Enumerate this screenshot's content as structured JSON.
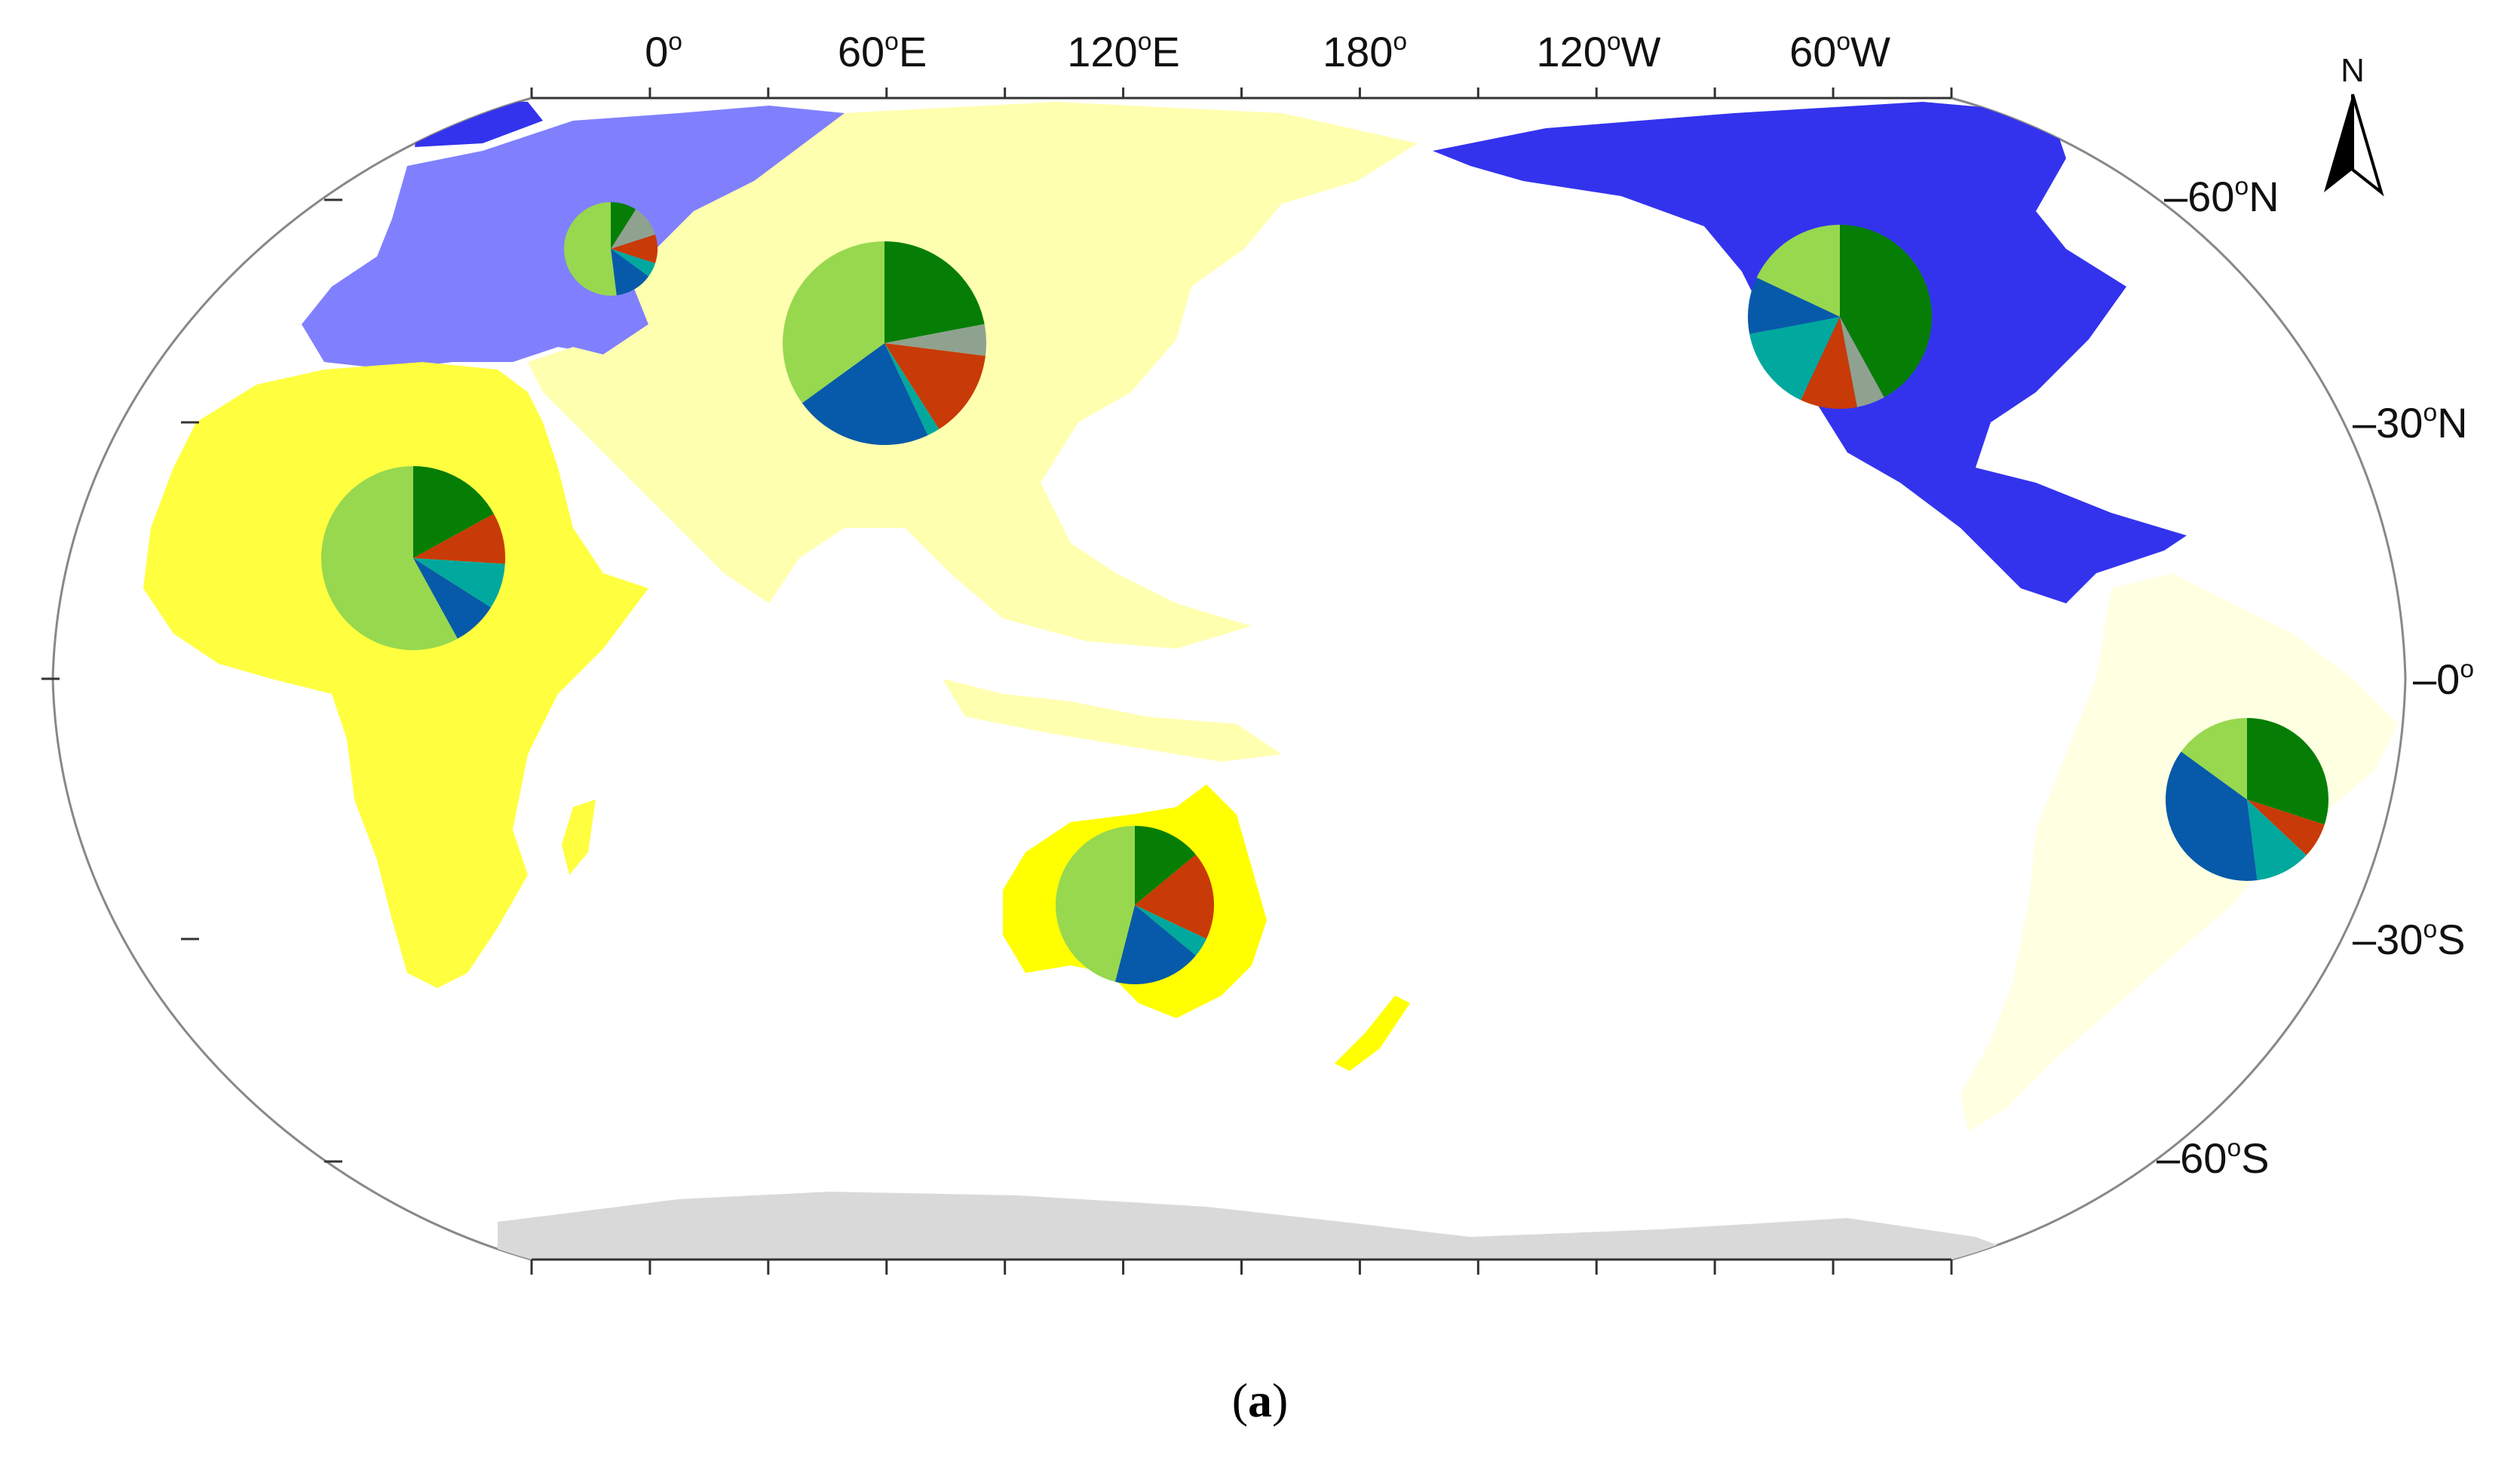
{
  "map": {
    "longitude_labels": [
      "0",
      "60",
      "120",
      "180",
      "120",
      "60"
    ],
    "longitude_suffixes": [
      "",
      "E",
      "E",
      "",
      "W",
      "W"
    ],
    "latitude_labels": [
      "60",
      "30",
      "0",
      "30",
      "60"
    ],
    "latitude_suffixes": [
      "N",
      "N",
      "",
      "S",
      "S"
    ],
    "degree_mark": "o",
    "north_arrow_label": "N",
    "region_colors": {
      "europe": "#8080ff",
      "asia": "#ffffb0",
      "north_america": "#3333ee",
      "africa": "#ffff40",
      "australia": "#ffff00",
      "south_america": "#ffffe2",
      "antarctica": "#d9d9d9"
    },
    "pie_category_colors": [
      "#067e06",
      "#8fa28f",
      "#c83a07",
      "#00a89e",
      "#075aa9",
      "#97d84f"
    ],
    "pies": [
      {
        "region": "Europe",
        "fractions": [
          0.09,
          0.11,
          0.1,
          0.05,
          0.13,
          0.52
        ]
      },
      {
        "region": "Asia",
        "fractions": [
          0.22,
          0.05,
          0.14,
          0.02,
          0.22,
          0.35
        ]
      },
      {
        "region": "North America",
        "fractions": [
          0.42,
          0.05,
          0.1,
          0.15,
          0.1,
          0.18
        ]
      },
      {
        "region": "Africa",
        "fractions": [
          0.17,
          0.0,
          0.09,
          0.08,
          0.08,
          0.58
        ]
      },
      {
        "region": "Australia",
        "fractions": [
          0.14,
          0.0,
          0.18,
          0.04,
          0.18,
          0.46
        ]
      },
      {
        "region": "South America",
        "fractions": [
          0.3,
          0.0,
          0.07,
          0.11,
          0.37,
          0.15
        ]
      }
    ]
  },
  "caption": {
    "open": "(",
    "letter": "a",
    "close": ")"
  }
}
